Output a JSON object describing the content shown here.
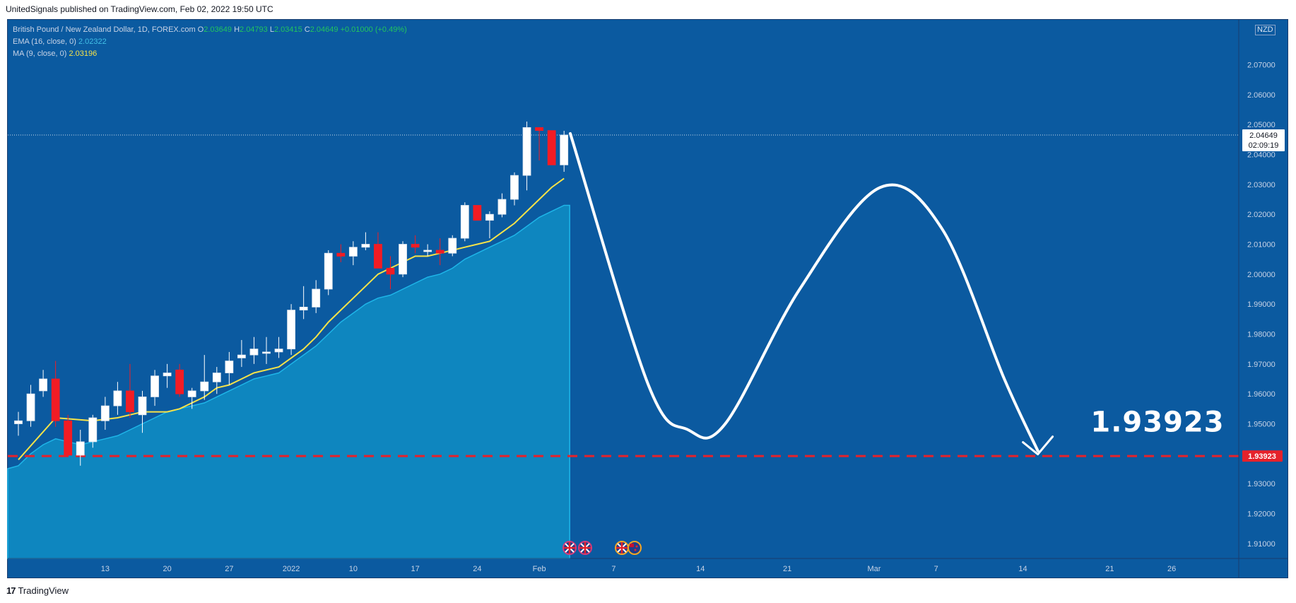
{
  "header": {
    "caption": "UnitedSignals published on TradingView.com, Feb 02, 2022 19:50 UTC"
  },
  "legend": {
    "symbol": "British Pound / New Zealand Dollar, 1D, FOREX.com",
    "o_label": "O",
    "o_val": "2.03649",
    "h_label": "H",
    "h_val": "2.04793",
    "l_label": "L",
    "l_val": "2.03415",
    "c_label": "C",
    "c_val": "2.04649",
    "change": "+0.01000 (+0.49%)",
    "ema_label": "EMA (16, close, 0)",
    "ema_val": "2.02322",
    "ma_label": "MA (9, close, 0)",
    "ma_val": "2.03196"
  },
  "axis": {
    "currency": "NZD",
    "price_badge": "2.04649",
    "countdown": "02:09:19",
    "target_badge": "1.93923"
  },
  "annotation": {
    "target_text": "1.93923"
  },
  "footer": {
    "brand": "TradingView",
    "logo_glyph": "17"
  },
  "colors": {
    "background": "#0b5aa0",
    "area_fill": "#0e86bf",
    "bull": "#ffffff",
    "bear": "#f21c24",
    "ma": "#f7e348",
    "target": "#e5222b",
    "projection": "#ffffff"
  },
  "icons": [
    "uk-flag-icon",
    "uk-flag-icon",
    "uk-flag-icon",
    "nz-flag-icon"
  ],
  "chart_data": {
    "type": "candlestick",
    "ylim": [
      1.905,
      2.085
    ],
    "y_ticks": [
      "2.07000",
      "2.06000",
      "2.05000",
      "2.04000",
      "2.03000",
      "2.02000",
      "2.01000",
      "2.00000",
      "1.99000",
      "1.98000",
      "1.97000",
      "1.96000",
      "1.95000",
      "1.94000",
      "1.93000",
      "1.92000",
      "1.91000"
    ],
    "x_tick_labels": [
      {
        "label": "13",
        "bar": 7
      },
      {
        "label": "20",
        "bar": 12
      },
      {
        "label": "27",
        "bar": 17
      },
      {
        "label": "2022",
        "bar": 22
      },
      {
        "label": "10",
        "bar": 27
      },
      {
        "label": "17",
        "bar": 32
      },
      {
        "label": "24",
        "bar": 37
      },
      {
        "label": "Feb",
        "bar": 42
      },
      {
        "label": "7",
        "bar": 48
      },
      {
        "label": "14",
        "bar": 55
      },
      {
        "label": "21",
        "bar": 62
      },
      {
        "label": "Mar",
        "bar": 69
      },
      {
        "label": "7",
        "bar": 74
      },
      {
        "label": "14",
        "bar": 81
      },
      {
        "label": "21",
        "bar": 88
      },
      {
        "label": "26",
        "bar": 93
      }
    ],
    "candles": [
      {
        "o": 1.95,
        "h": 1.954,
        "l": 1.946,
        "c": 1.951
      },
      {
        "o": 1.951,
        "h": 1.963,
        "l": 1.949,
        "c": 1.96
      },
      {
        "o": 1.961,
        "h": 1.968,
        "l": 1.959,
        "c": 1.965
      },
      {
        "o": 1.965,
        "h": 1.971,
        "l": 1.949,
        "c": 1.951
      },
      {
        "o": 1.951,
        "h": 1.953,
        "l": 1.9395,
        "c": 1.9395
      },
      {
        "o": 1.9395,
        "h": 1.948,
        "l": 1.936,
        "c": 1.944
      },
      {
        "o": 1.944,
        "h": 1.953,
        "l": 1.942,
        "c": 1.952
      },
      {
        "o": 1.951,
        "h": 1.959,
        "l": 1.948,
        "c": 1.956
      },
      {
        "o": 1.956,
        "h": 1.964,
        "l": 1.953,
        "c": 1.961
      },
      {
        "o": 1.961,
        "h": 1.97,
        "l": 1.952,
        "c": 1.954
      },
      {
        "o": 1.953,
        "h": 1.961,
        "l": 1.947,
        "c": 1.959
      },
      {
        "o": 1.959,
        "h": 1.968,
        "l": 1.956,
        "c": 1.966
      },
      {
        "o": 1.966,
        "h": 1.97,
        "l": 1.962,
        "c": 1.967
      },
      {
        "o": 1.968,
        "h": 1.97,
        "l": 1.959,
        "c": 1.96
      },
      {
        "o": 1.959,
        "h": 1.962,
        "l": 1.955,
        "c": 1.961
      },
      {
        "o": 1.961,
        "h": 1.973,
        "l": 1.958,
        "c": 1.964
      },
      {
        "o": 1.964,
        "h": 1.969,
        "l": 1.96,
        "c": 1.967
      },
      {
        "o": 1.967,
        "h": 1.974,
        "l": 1.963,
        "c": 1.971
      },
      {
        "o": 1.972,
        "h": 1.978,
        "l": 1.969,
        "c": 1.973
      },
      {
        "o": 1.973,
        "h": 1.979,
        "l": 1.97,
        "c": 1.975
      },
      {
        "o": 1.974,
        "h": 1.979,
        "l": 1.97,
        "c": 1.974
      },
      {
        "o": 1.974,
        "h": 1.979,
        "l": 1.972,
        "c": 1.975
      },
      {
        "o": 1.975,
        "h": 1.99,
        "l": 1.973,
        "c": 1.988
      },
      {
        "o": 1.988,
        "h": 1.996,
        "l": 1.985,
        "c": 1.989
      },
      {
        "o": 1.989,
        "h": 1.998,
        "l": 1.987,
        "c": 1.995
      },
      {
        "o": 1.995,
        "h": 2.008,
        "l": 1.993,
        "c": 2.007
      },
      {
        "o": 2.007,
        "h": 2.01,
        "l": 2.004,
        "c": 2.006
      },
      {
        "o": 2.006,
        "h": 2.011,
        "l": 2.003,
        "c": 2.009
      },
      {
        "o": 2.009,
        "h": 2.014,
        "l": 2.008,
        "c": 2.01
      },
      {
        "o": 2.01,
        "h": 2.014,
        "l": 2.003,
        "c": 2.002
      },
      {
        "o": 2.002,
        "h": 2.006,
        "l": 1.995,
        "c": 2.0
      },
      {
        "o": 2.0,
        "h": 2.011,
        "l": 1.999,
        "c": 2.01
      },
      {
        "o": 2.01,
        "h": 2.013,
        "l": 2.007,
        "c": 2.009
      },
      {
        "o": 2.008,
        "h": 2.01,
        "l": 2.006,
        "c": 2.008
      },
      {
        "o": 2.008,
        "h": 2.012,
        "l": 2.003,
        "c": 2.007
      },
      {
        "o": 2.007,
        "h": 2.013,
        "l": 2.006,
        "c": 2.012
      },
      {
        "o": 2.012,
        "h": 2.024,
        "l": 2.011,
        "c": 2.023
      },
      {
        "o": 2.023,
        "h": 2.023,
        "l": 2.018,
        "c": 2.018
      },
      {
        "o": 2.018,
        "h": 2.021,
        "l": 2.012,
        "c": 2.02
      },
      {
        "o": 2.02,
        "h": 2.027,
        "l": 2.019,
        "c": 2.025
      },
      {
        "o": 2.025,
        "h": 2.034,
        "l": 2.023,
        "c": 2.033
      },
      {
        "o": 2.033,
        "h": 2.051,
        "l": 2.028,
        "c": 2.049
      },
      {
        "o": 2.049,
        "h": 2.049,
        "l": 2.038,
        "c": 2.048
      },
      {
        "o": 2.048,
        "h": 2.048,
        "l": 2.037,
        "c": 2.0365
      },
      {
        "o": 2.0365,
        "h": 2.0479,
        "l": 2.0342,
        "c": 2.0465
      }
    ],
    "ema16": [
      1.936,
      1.94,
      1.943,
      1.945,
      1.944,
      1.943,
      1.944,
      1.945,
      1.946,
      1.948,
      1.95,
      1.952,
      1.954,
      1.955,
      1.956,
      1.957,
      1.959,
      1.961,
      1.963,
      1.965,
      1.966,
      1.967,
      1.97,
      1.973,
      1.976,
      1.98,
      1.984,
      1.987,
      1.99,
      1.992,
      1.993,
      1.995,
      1.997,
      1.999,
      2.0,
      2.002,
      2.005,
      2.007,
      2.009,
      2.011,
      2.013,
      2.016,
      2.019,
      2.021,
      2.023
    ],
    "ma9": [
      null,
      null,
      null,
      null,
      null,
      null,
      null,
      null,
      1.952,
      1.953,
      1.954,
      1.954,
      1.954,
      1.955,
      1.957,
      1.959,
      1.962,
      1.963,
      1.965,
      1.967,
      1.968,
      1.969,
      1.972,
      1.975,
      1.979,
      1.984,
      1.988,
      1.992,
      1.996,
      2.0,
      2.002,
      2.004,
      2.006,
      2.006,
      2.007,
      2.008,
      2.009,
      2.01,
      2.011,
      2.014,
      2.017,
      2.021,
      2.025,
      2.029,
      2.032
    ],
    "target_level": 1.93923,
    "current_price": 2.04649,
    "projection": [
      {
        "bar": 44.5,
        "y": 2.047
      },
      {
        "bar": 50.8,
        "y": 1.963
      },
      {
        "bar": 54.0,
        "y": 1.948
      },
      {
        "bar": 57.0,
        "y": 1.95
      },
      {
        "bar": 63.0,
        "y": 1.995
      },
      {
        "bar": 69.5,
        "y": 2.029
      },
      {
        "bar": 74.5,
        "y": 2.015
      },
      {
        "bar": 79.5,
        "y": 1.965
      },
      {
        "bar": 82.2,
        "y": 1.941
      }
    ]
  }
}
